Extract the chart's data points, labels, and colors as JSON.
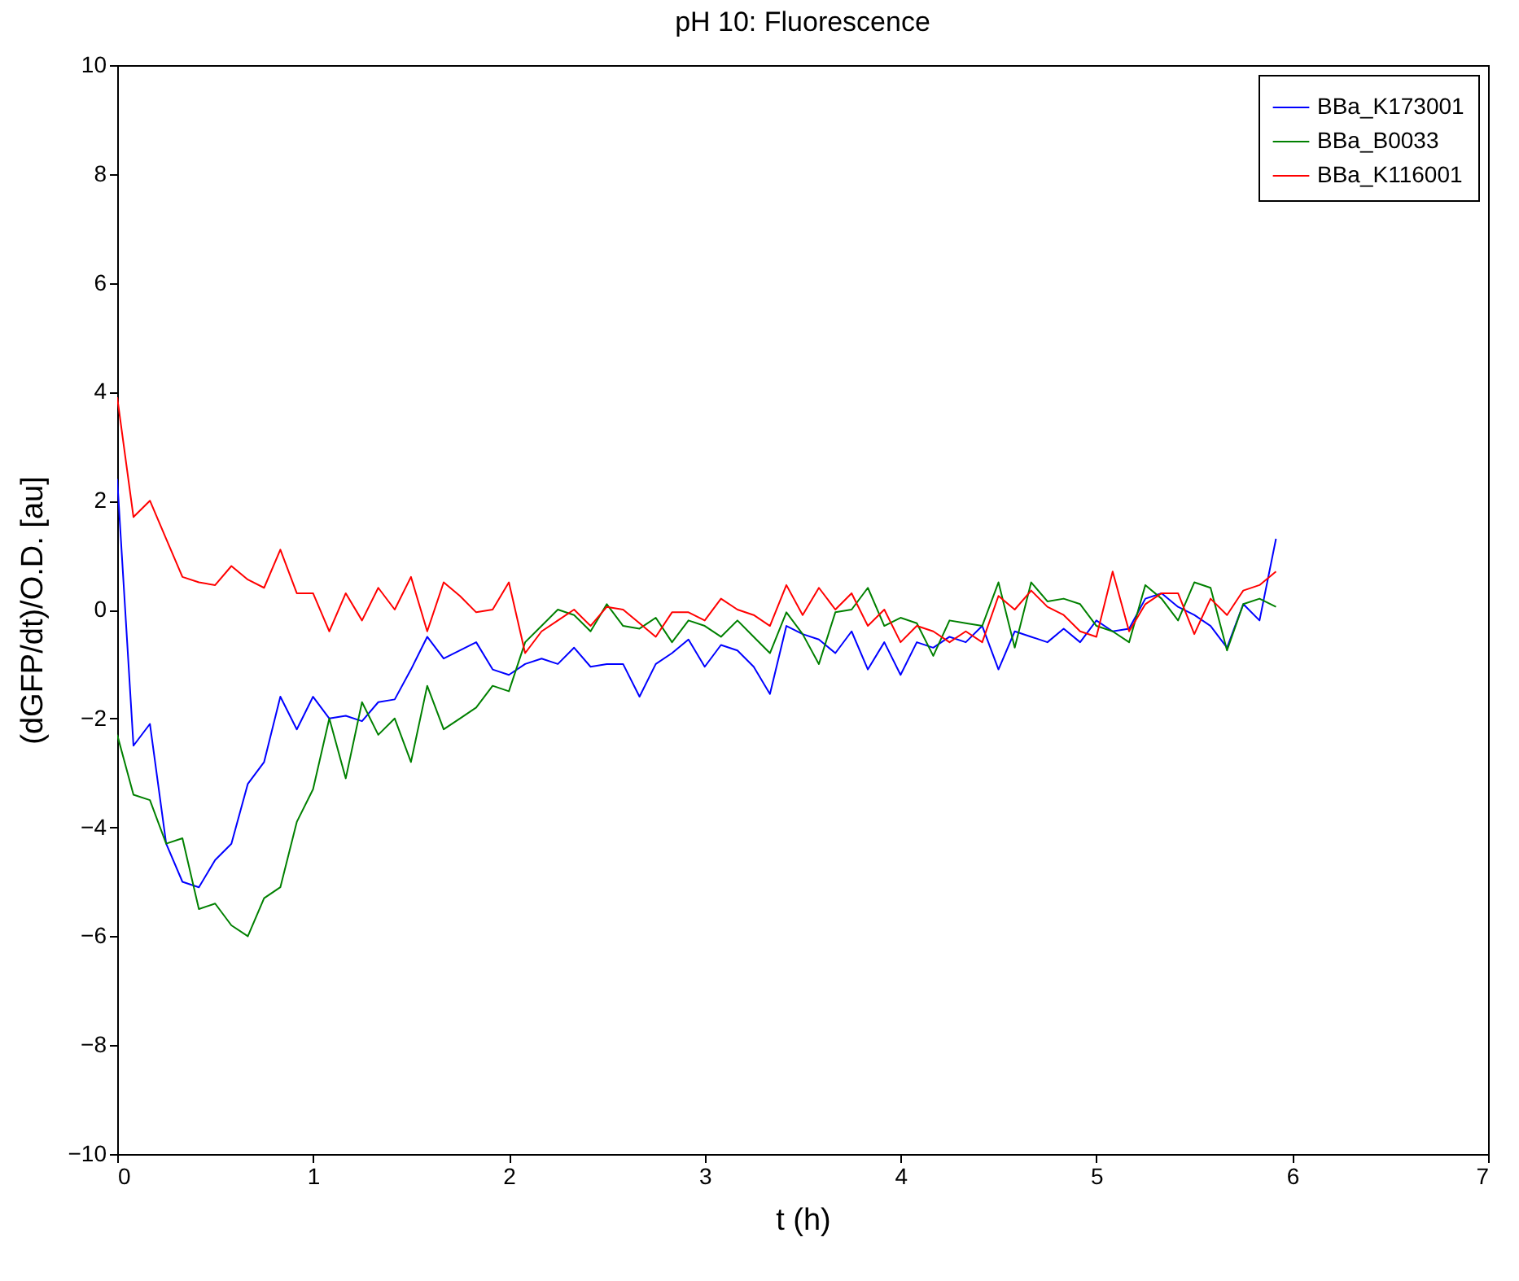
{
  "chart_data": {
    "type": "line",
    "title": "pH 10: Fluorescence",
    "xlabel": "t (h)",
    "ylabel": "(dGFP/dt)/O.D. [au]",
    "x": [
      0,
      0.083,
      0.167,
      0.25,
      0.333,
      0.417,
      0.5,
      0.583,
      0.667,
      0.75,
      0.833,
      0.917,
      1,
      1.083,
      1.167,
      1.25,
      1.333,
      1.417,
      1.5,
      1.583,
      1.667,
      1.75,
      1.833,
      1.917,
      2,
      2.083,
      2.167,
      2.25,
      2.333,
      2.417,
      2.5,
      2.583,
      2.667,
      2.75,
      2.833,
      2.917,
      3,
      3.083,
      3.167,
      3.25,
      3.333,
      3.417,
      3.5,
      3.583,
      3.667,
      3.75,
      3.833,
      3.917,
      4,
      4.083,
      4.167,
      4.25,
      4.333,
      4.417,
      4.5,
      4.583,
      4.667,
      4.75,
      4.833,
      4.917,
      5,
      5.083,
      5.167,
      5.25,
      5.333,
      5.417,
      5.5,
      5.583,
      5.667,
      5.75,
      5.833,
      5.917
    ],
    "series": [
      {
        "name": "BBa_K173001",
        "color": "#0000ff",
        "values": [
          2.4,
          -2.5,
          -2.1,
          -4.3,
          -5.0,
          -5.1,
          -4.6,
          -4.3,
          -3.2,
          -2.8,
          -1.6,
          -2.2,
          -1.6,
          -2.0,
          -1.95,
          -2.05,
          -1.7,
          -1.65,
          -1.1,
          -0.5,
          -0.9,
          -0.75,
          -0.6,
          -1.1,
          -1.2,
          -1.0,
          -0.9,
          -1.0,
          -0.7,
          -1.05,
          -1.0,
          -1.0,
          -1.6,
          -1.0,
          -0.8,
          -0.55,
          -1.05,
          -0.65,
          -0.75,
          -1.05,
          -1.55,
          -0.3,
          -0.45,
          -0.55,
          -0.8,
          -0.4,
          -1.1,
          -0.6,
          -1.2,
          -0.6,
          -0.7,
          -0.5,
          -0.6,
          -0.3,
          -1.1,
          -0.4,
          -0.5,
          -0.6,
          -0.35,
          -0.6,
          -0.2,
          -0.4,
          -0.35,
          0.2,
          0.3,
          0.05,
          -0.1,
          -0.3,
          -0.7,
          0.1,
          -0.2,
          1.3
        ]
      },
      {
        "name": "BBa_B0033",
        "color": "#008000",
        "values": [
          -2.3,
          -3.4,
          -3.5,
          -4.3,
          -4.2,
          -5.5,
          -5.4,
          -5.8,
          -6.0,
          -5.3,
          -5.1,
          -3.9,
          -3.3,
          -2.0,
          -3.1,
          -1.7,
          -2.3,
          -2.0,
          -2.8,
          -1.4,
          -2.2,
          -2.0,
          -1.8,
          -1.4,
          -1.5,
          -0.6,
          -0.3,
          0.0,
          -0.1,
          -0.4,
          0.1,
          -0.3,
          -0.35,
          -0.15,
          -0.6,
          -0.2,
          -0.3,
          -0.5,
          -0.2,
          -0.5,
          -0.8,
          -0.05,
          -0.45,
          -1.0,
          -0.05,
          0.0,
          0.4,
          -0.3,
          -0.15,
          -0.25,
          -0.85,
          -0.2,
          -0.25,
          -0.3,
          0.5,
          -0.7,
          0.5,
          0.15,
          0.2,
          0.1,
          -0.3,
          -0.4,
          -0.6,
          0.45,
          0.2,
          -0.2,
          0.5,
          0.4,
          -0.75,
          0.1,
          0.2,
          0.05
        ]
      },
      {
        "name": "BBa_K116001",
        "color": "#ff0000",
        "values": [
          3.9,
          1.7,
          2.0,
          1.3,
          0.6,
          0.5,
          0.45,
          0.8,
          0.55,
          0.4,
          1.1,
          0.3,
          0.3,
          -0.4,
          0.3,
          -0.2,
          0.4,
          0.0,
          0.6,
          -0.4,
          0.5,
          0.25,
          -0.05,
          0.0,
          0.5,
          -0.8,
          -0.4,
          -0.2,
          0.0,
          -0.3,
          0.05,
          0.0,
          -0.25,
          -0.5,
          -0.05,
          -0.05,
          -0.2,
          0.2,
          0.0,
          -0.1,
          -0.3,
          0.45,
          -0.1,
          0.4,
          0.0,
          0.3,
          -0.3,
          0.0,
          -0.6,
          -0.3,
          -0.4,
          -0.6,
          -0.4,
          -0.6,
          0.25,
          0.0,
          0.35,
          0.05,
          -0.1,
          -0.4,
          -0.5,
          0.7,
          -0.4,
          0.1,
          0.3,
          0.3,
          -0.45,
          0.2,
          -0.1,
          0.35,
          0.45,
          0.7
        ]
      }
    ],
    "xlim": [
      0,
      7
    ],
    "xticks": [
      0,
      1,
      2,
      3,
      4,
      5,
      6,
      7
    ],
    "ylim": [
      -10,
      10
    ],
    "yticks": [
      -10,
      -8,
      -6,
      -4,
      -2,
      0,
      2,
      4,
      6,
      8,
      10
    ],
    "legend": "top right",
    "grid": false,
    "marker": "none",
    "line_style": "solid"
  }
}
